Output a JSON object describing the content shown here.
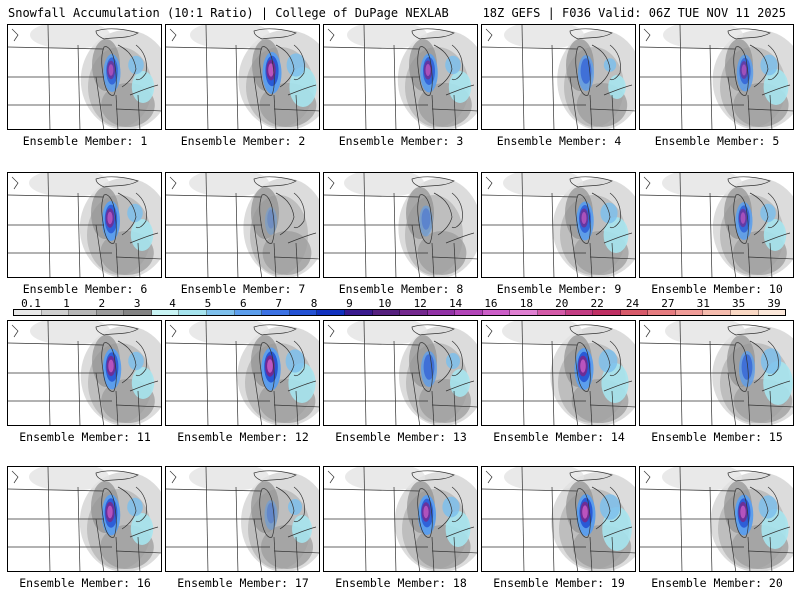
{
  "header": {
    "left": "Snowfall Accumulation (10:1 Ratio) | College of DuPage NEXLAB",
    "right": "18Z GEFS | F036 Valid: 06Z TUE NOV 11 2025"
  },
  "colorbar": {
    "labels": [
      "0.1",
      "1",
      "2",
      "3",
      "4",
      "5",
      "6",
      "7",
      "8",
      "9",
      "10",
      "12",
      "14",
      "16",
      "18",
      "20",
      "22",
      "24",
      "27",
      "31",
      "35",
      "39"
    ],
    "colors": [
      "#e8e8e8",
      "#cfcfcf",
      "#b6b6b6",
      "#9c9c9c",
      "#848484",
      "#c8f4f4",
      "#a6e4ee",
      "#7ec0ec",
      "#5c9eec",
      "#3c72e4",
      "#2452d4",
      "#1232c0",
      "#3a1a8e",
      "#56207e",
      "#74288e",
      "#9232a6",
      "#b244b8",
      "#cc5ec8",
      "#e080d2",
      "#d45aa8",
      "#c43e84",
      "#c03064",
      "#d85a6a",
      "#e67c80",
      "#f09c98",
      "#f6bcae",
      "#fad8c4",
      "#fce8da"
    ]
  },
  "members": [
    {
      "label": "Ensemble Member: 1",
      "intensity": 0.7,
      "spread": 0.6,
      "shift": 0
    },
    {
      "label": "Ensemble Member: 2",
      "intensity": 0.9,
      "spread": 0.8,
      "shift": 2
    },
    {
      "label": "Ensemble Member: 3",
      "intensity": 0.75,
      "spread": 0.6,
      "shift": 1
    },
    {
      "label": "Ensemble Member: 4",
      "intensity": 0.6,
      "spread": 0.4,
      "shift": 0
    },
    {
      "label": "Ensemble Member: 5",
      "intensity": 0.65,
      "spread": 0.7,
      "shift": 1
    },
    {
      "label": "Ensemble Member: 6",
      "intensity": 0.8,
      "spread": 0.6,
      "shift": -1
    },
    {
      "label": "Ensemble Member: 7",
      "intensity": 0.2,
      "spread": 0.3,
      "shift": 1
    },
    {
      "label": "Ensemble Member: 8",
      "intensity": 0.35,
      "spread": 0.3,
      "shift": -2
    },
    {
      "label": "Ensemble Member: 9",
      "intensity": 0.75,
      "spread": 0.7,
      "shift": -1
    },
    {
      "label": "Ensemble Member: 10",
      "intensity": 0.7,
      "spread": 0.6,
      "shift": 0
    },
    {
      "label": "Ensemble Member: 11",
      "intensity": 0.85,
      "spread": 0.6,
      "shift": 0
    },
    {
      "label": "Ensemble Member: 12",
      "intensity": 0.95,
      "spread": 0.8,
      "shift": 1
    },
    {
      "label": "Ensemble Member: 13",
      "intensity": 0.6,
      "spread": 0.5,
      "shift": 1
    },
    {
      "label": "Ensemble Member: 14",
      "intensity": 0.9,
      "spread": 0.8,
      "shift": -2
    },
    {
      "label": "Ensemble Member: 15",
      "intensity": 0.6,
      "spread": 0.9,
      "shift": 3
    },
    {
      "label": "Ensemble Member: 16",
      "intensity": 0.85,
      "spread": 0.6,
      "shift": -1
    },
    {
      "label": "Ensemble Member: 17",
      "intensity": 0.3,
      "spread": 0.5,
      "shift": 1
    },
    {
      "label": "Ensemble Member: 18",
      "intensity": 0.8,
      "spread": 0.7,
      "shift": -1
    },
    {
      "label": "Ensemble Member: 19",
      "intensity": 0.9,
      "spread": 0.9,
      "shift": 0
    },
    {
      "label": "Ensemble Member: 20",
      "intensity": 0.85,
      "spread": 0.8,
      "shift": 0
    }
  ]
}
